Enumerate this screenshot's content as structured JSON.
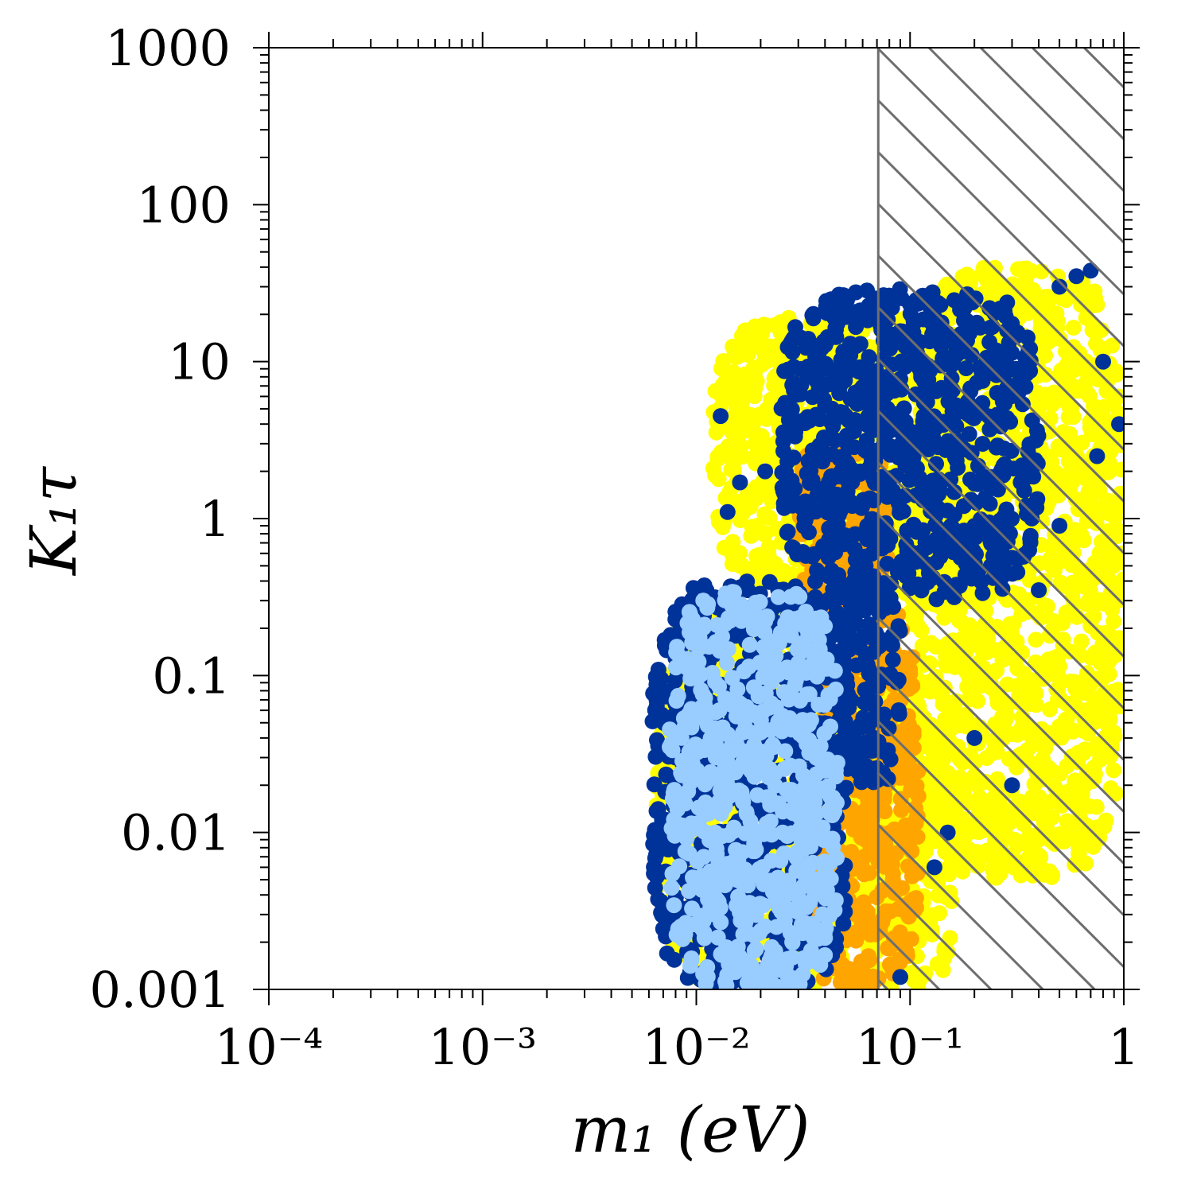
{
  "chart_data": {
    "type": "scatter",
    "xlabel": "m₁ (eV)",
    "ylabel": "K₁τ",
    "x_scale": "log",
    "y_scale": "log",
    "xlim": [
      0.0001,
      1.0
    ],
    "ylim": [
      0.001,
      1000
    ],
    "x_ticks": [
      {
        "value": 0.0001,
        "label": "10⁻⁴"
      },
      {
        "value": 0.001,
        "label": "10⁻³"
      },
      {
        "value": 0.01,
        "label": "10⁻²"
      },
      {
        "value": 0.1,
        "label": "10⁻¹"
      },
      {
        "value": 1.0,
        "label": "1"
      }
    ],
    "y_ticks": [
      {
        "value": 0.001,
        "label": "0.001"
      },
      {
        "value": 0.01,
        "label": "0.01"
      },
      {
        "value": 0.1,
        "label": "0.1"
      },
      {
        "value": 1,
        "label": "1"
      },
      {
        "value": 10,
        "label": "10"
      },
      {
        "value": 100,
        "label": "100"
      },
      {
        "value": 1000,
        "label": "1000"
      }
    ],
    "excluded_region": {
      "x_min": 0.071,
      "x_max": 1.0,
      "pattern": "diagonal-hatch"
    },
    "series": [
      {
        "color": "#ffff00",
        "regions": [
          {
            "x": [
              0.0065,
              0.06
            ],
            "y": [
              0.001,
              0.3
            ]
          },
          {
            "x": [
              0.012,
              0.2
            ],
            "y": [
              0.3,
              20
            ]
          },
          {
            "x": [
              0.06,
              0.16
            ],
            "y": [
              0.001,
              0.1
            ]
          },
          {
            "x": [
              0.1,
              1.0
            ],
            "y": [
              0.005,
              40
            ]
          }
        ]
      },
      {
        "color": "#ffa500",
        "regions": [
          {
            "x": [
              0.03,
              0.11
            ],
            "y": [
              0.001,
              0.3
            ]
          },
          {
            "x": [
              0.03,
              0.08
            ],
            "y": [
              0.3,
              3
            ]
          }
        ]
      },
      {
        "color": "#003399",
        "regions": [
          {
            "x": [
              0.0062,
              0.052
            ],
            "y": [
              0.001,
              0.4
            ]
          },
          {
            "x": [
              0.025,
              0.4
            ],
            "y": [
              0.3,
              30
            ]
          },
          {
            "x": [
              0.04,
              0.09
            ],
            "y": [
              0.02,
              0.5
            ]
          }
        ],
        "points": [
          [
            0.013,
            4.5
          ],
          [
            0.021,
            2.0
          ],
          [
            0.016,
            1.7
          ],
          [
            0.014,
            1.1
          ],
          [
            0.5,
            30
          ],
          [
            0.6,
            35
          ],
          [
            0.7,
            38
          ],
          [
            0.8,
            10
          ],
          [
            0.95,
            4
          ],
          [
            0.75,
            2.5
          ],
          [
            0.5,
            0.9
          ],
          [
            0.4,
            0.35
          ],
          [
            0.3,
            0.02
          ],
          [
            0.2,
            0.04
          ],
          [
            0.13,
            0.006
          ],
          [
            0.09,
            0.0012
          ],
          [
            0.15,
            0.01
          ]
        ]
      },
      {
        "color": "#99ccff",
        "regions": [
          {
            "x": [
              0.0075,
              0.046
            ],
            "y": [
              0.001,
              0.35
            ]
          }
        ]
      }
    ]
  }
}
